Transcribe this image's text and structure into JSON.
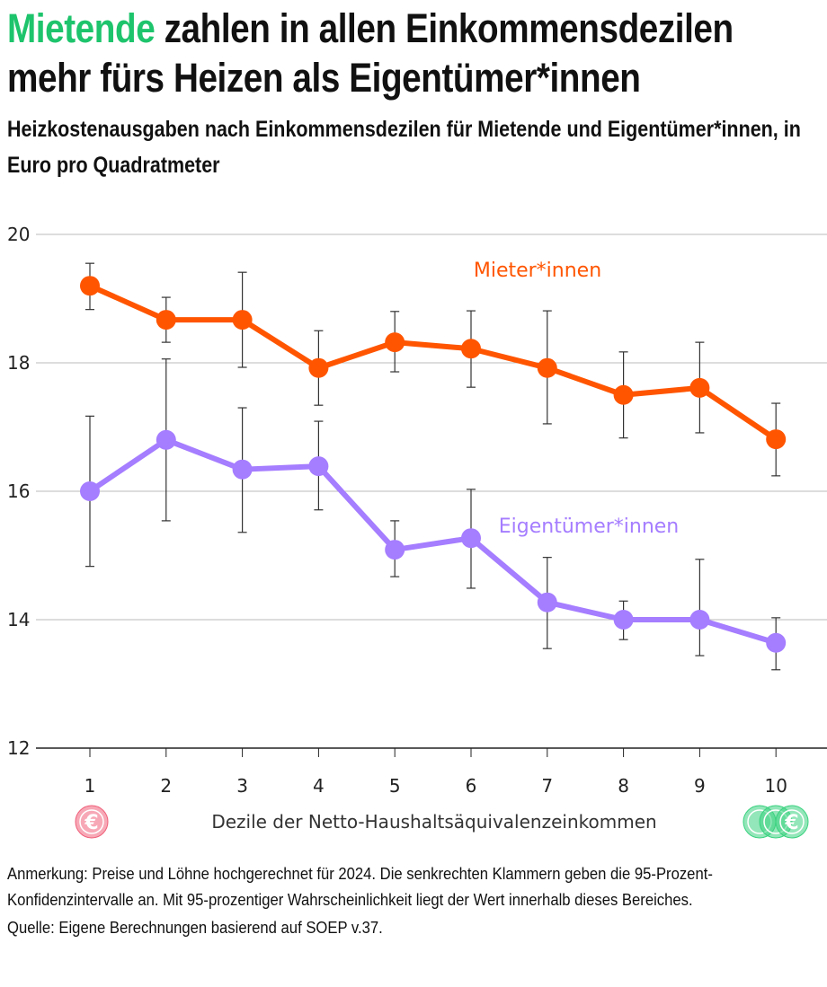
{
  "title_highlight": "Mietende",
  "title_rest": " zahlen in allen Einkommensdezilen mehr fürs Heizen als Eigentümer*innen",
  "subtitle": "Heizkostenausgaben nach Einkommensdezilen für Mietende und Eigentümer*innen, in Euro pro Quadratmeter",
  "note": "Anmerkung: Preise und Löhne hochgerechnet für 2024. Die senkrechten Klammern geben die 95-Prozent-Konfidenzintervalle an. Mit 95-prozentiger Wahrscheinlichkeit liegt der Wert innerhalb dieses Bereiches.",
  "source": "Quelle: Eigene Berechnungen basierend auf SOEP v.37.",
  "icons": {
    "low_income": "single-euro-coin-icon",
    "high_income": "stacked-euro-coins-icon",
    "low_color": "#f0607a",
    "high_color": "#3ad27f"
  },
  "chart_data": {
    "type": "line",
    "xlabel": "Dezile der Netto-Haushaltsäquivalenzeinkommen",
    "ylabel": "",
    "categories": [
      "1",
      "2",
      "3",
      "4",
      "5",
      "6",
      "7",
      "8",
      "9",
      "10"
    ],
    "ylim": [
      12,
      20
    ],
    "yticks": [
      "12",
      "14",
      "16",
      "18",
      "20"
    ],
    "grid": true,
    "series": [
      {
        "name": "Mieter*innen",
        "color": "#ff5500",
        "values": [
          19.2,
          18.67,
          18.67,
          17.92,
          18.32,
          18.22,
          17.92,
          17.5,
          17.61,
          16.81
        ],
        "ci_high": [
          19.55,
          19.02,
          19.41,
          18.5,
          18.8,
          18.81,
          18.81,
          18.17,
          18.32,
          17.37
        ],
        "ci_low": [
          18.83,
          18.32,
          17.93,
          17.34,
          17.86,
          17.62,
          17.05,
          16.83,
          16.91,
          16.24
        ]
      },
      {
        "name": "Eigentümer*innen",
        "color": "#a57dff",
        "values": [
          16.0,
          16.8,
          16.34,
          16.39,
          15.09,
          15.27,
          14.27,
          14.0,
          14.0,
          13.64
        ],
        "ci_high": [
          17.17,
          18.06,
          17.3,
          17.09,
          15.54,
          16.03,
          14.97,
          14.29,
          14.94,
          14.03
        ],
        "ci_low": [
          14.83,
          15.54,
          15.36,
          15.71,
          14.67,
          14.49,
          13.55,
          13.69,
          13.44,
          13.22
        ]
      }
    ]
  }
}
